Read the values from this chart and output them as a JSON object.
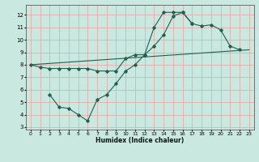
{
  "title": "",
  "xlabel": "Humidex (Indice chaleur)",
  "ylabel": "",
  "xlim": [
    -0.5,
    23.5
  ],
  "ylim": [
    2.8,
    12.8
  ],
  "xticks": [
    0,
    1,
    2,
    3,
    4,
    5,
    6,
    7,
    8,
    9,
    10,
    11,
    12,
    13,
    14,
    15,
    16,
    17,
    18,
    19,
    20,
    21,
    22,
    23
  ],
  "yticks": [
    3,
    4,
    5,
    6,
    7,
    8,
    9,
    10,
    11,
    12
  ],
  "bg_color": "#c8e8e0",
  "grid_color": "#e8a0a0",
  "line_color": "#206050",
  "line1_x": [
    0,
    1,
    2,
    3,
    4,
    5,
    6,
    7,
    8,
    9,
    10,
    11,
    12,
    13,
    14,
    15,
    16,
    17,
    18,
    19,
    20,
    21,
    22
  ],
  "line1_y": [
    8.0,
    7.8,
    7.7,
    7.7,
    7.7,
    7.7,
    7.7,
    7.5,
    7.5,
    7.5,
    8.5,
    8.8,
    8.8,
    11.0,
    12.2,
    12.2,
    12.2,
    11.3,
    11.1,
    11.2,
    10.8,
    9.5,
    9.2
  ],
  "line2_x": [
    2,
    3,
    4,
    5,
    6,
    7,
    8,
    9,
    10,
    11,
    12,
    13,
    14,
    15,
    16,
    17
  ],
  "line2_y": [
    5.6,
    4.6,
    4.5,
    4.0,
    3.5,
    5.2,
    5.6,
    6.5,
    7.5,
    8.0,
    8.8,
    9.5,
    10.4,
    11.9,
    12.2,
    11.3
  ],
  "line3_x": [
    0,
    23
  ],
  "line3_y": [
    8.0,
    9.2
  ],
  "figsize": [
    3.2,
    2.0
  ],
  "dpi": 100,
  "xlabel_fontsize": 5.5,
  "tick_fontsize": 4.5
}
